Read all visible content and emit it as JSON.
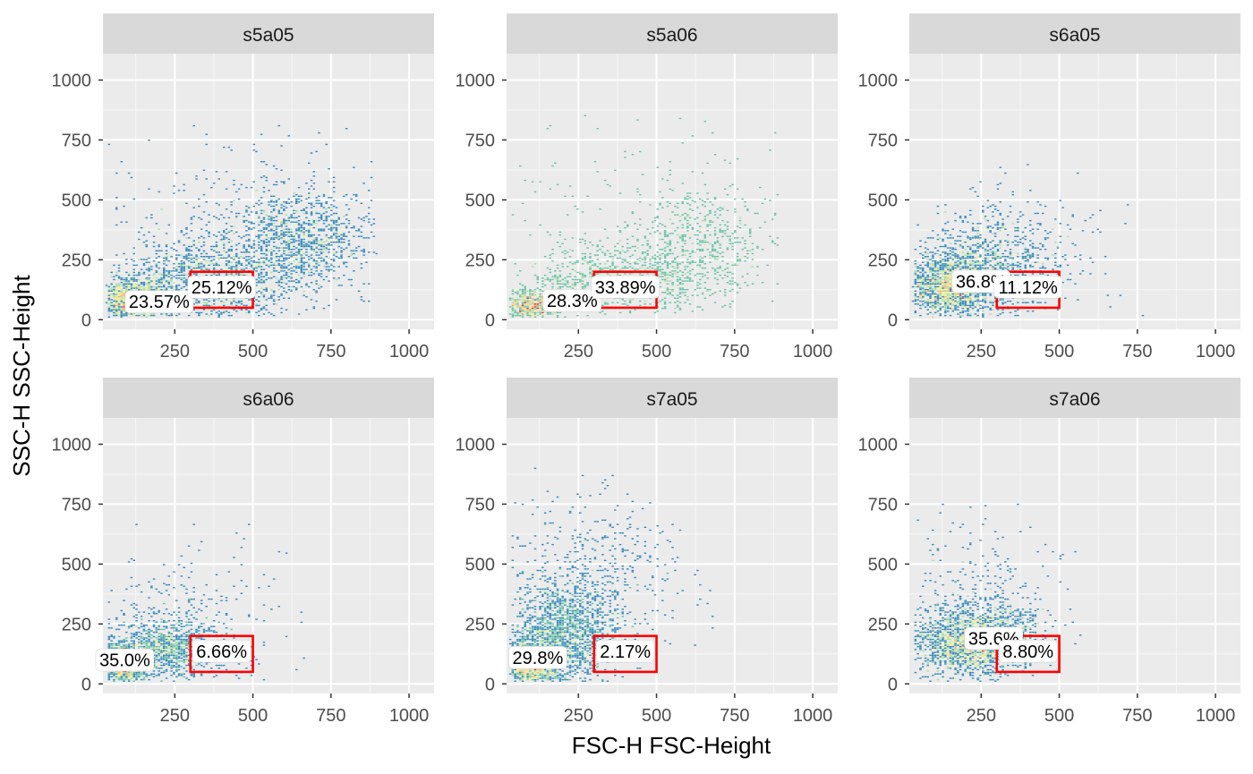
{
  "chart_data": {
    "type": "scatter",
    "title": "",
    "xlabel": "FSC-H FSC-Height",
    "ylabel": "SSC-H SSC-Height",
    "xlim": [
      20,
      1080
    ],
    "ylim": [
      -40,
      1110
    ],
    "xticks": [
      250,
      500,
      750,
      1000
    ],
    "xtick_labels": [
      "250",
      "500",
      "750",
      "1000"
    ],
    "yticks": [
      0,
      250,
      500,
      750,
      1000
    ],
    "ytick_labels": [
      "0",
      "250",
      "500",
      "750",
      "1000"
    ],
    "grid": true,
    "facet_layout": "2x3",
    "gate_color": "#ff0000",
    "density_colors": [
      "#5e4fa2",
      "#3288bd",
      "#66c2a5",
      "#abdda4",
      "#e6f598",
      "#fee08b",
      "#fdae61",
      "#d53e4f"
    ],
    "panels": [
      {
        "name": "s5a05",
        "ellipse": {
          "cx": 200,
          "cy": 75,
          "rx": 95,
          "ry": 22
        },
        "ellipse_label": "23.57%",
        "rect": {
          "x0": 300,
          "x1": 500,
          "y0": 50,
          "y1": 200
        },
        "rect_label": "25.12%",
        "clusters": [
          {
            "cx": 120,
            "cy": 80,
            "sx": 60,
            "sy": 45,
            "n": 1400
          },
          {
            "cx": 350,
            "cy": 160,
            "sx": 130,
            "sy": 90,
            "n": 1300
          },
          {
            "cx": 650,
            "cy": 330,
            "sx": 110,
            "sy": 110,
            "n": 1000
          },
          {
            "cx": 500,
            "cy": 380,
            "sx": 220,
            "sy": 200,
            "n": 350
          }
        ]
      },
      {
        "name": "s5a06",
        "ellipse": {
          "cx": 230,
          "cy": 80,
          "rx": 80,
          "ry": 18
        },
        "ellipse_label": "28.3%",
        "rect": {
          "x0": 300,
          "x1": 500,
          "y0": 50,
          "y1": 200
        },
        "rect_label": "33.89%",
        "clusters": [
          {
            "cx": 100,
            "cy": 60,
            "sx": 50,
            "sy": 35,
            "n": 700
          },
          {
            "cx": 400,
            "cy": 170,
            "sx": 160,
            "sy": 80,
            "n": 900
          },
          {
            "cx": 650,
            "cy": 320,
            "sx": 120,
            "sy": 110,
            "n": 450
          },
          {
            "cx": 450,
            "cy": 420,
            "sx": 250,
            "sy": 220,
            "n": 150
          }
        ]
      },
      {
        "name": "s6a05",
        "ellipse": {
          "cx": 250,
          "cy": 160,
          "rx": 40,
          "ry": 32
        },
        "ellipse_label": "36.8%",
        "rect": {
          "x0": 300,
          "x1": 500,
          "y0": 50,
          "y1": 200
        },
        "rect_label": "11.12%",
        "clusters": [
          {
            "cx": 150,
            "cy": 140,
            "sx": 70,
            "sy": 60,
            "n": 1500
          },
          {
            "cx": 250,
            "cy": 200,
            "sx": 110,
            "sy": 100,
            "n": 900
          },
          {
            "cx": 350,
            "cy": 280,
            "sx": 150,
            "sy": 150,
            "n": 300
          }
        ]
      },
      {
        "name": "s6a06",
        "ellipse": {
          "cx": 90,
          "cy": 100,
          "rx": 22,
          "ry": 45
        },
        "ellipse_label": "35.0%",
        "rect": {
          "x0": 300,
          "x1": 500,
          "y0": 50,
          "y1": 200
        },
        "rect_label": "6.66%",
        "clusters": [
          {
            "cx": 90,
            "cy": 80,
            "sx": 40,
            "sy": 45,
            "n": 1200
          },
          {
            "cx": 230,
            "cy": 150,
            "sx": 80,
            "sy": 60,
            "n": 1000
          },
          {
            "cx": 300,
            "cy": 280,
            "sx": 140,
            "sy": 150,
            "n": 250
          }
        ]
      },
      {
        "name": "s7a05",
        "ellipse": {
          "cx": 120,
          "cy": 110,
          "rx": 40,
          "ry": 40
        },
        "ellipse_label": "29.8%",
        "rect": {
          "x0": 300,
          "x1": 500,
          "y0": 50,
          "y1": 200
        },
        "rect_label": "2.17%",
        "clusters": [
          {
            "cx": 90,
            "cy": 80,
            "sx": 40,
            "sy": 50,
            "n": 1400
          },
          {
            "cx": 200,
            "cy": 200,
            "sx": 80,
            "sy": 110,
            "n": 1600
          },
          {
            "cx": 300,
            "cy": 430,
            "sx": 150,
            "sy": 180,
            "n": 500
          }
        ]
      },
      {
        "name": "s7a06",
        "ellipse": {
          "cx": 290,
          "cy": 190,
          "rx": 40,
          "ry": 30
        },
        "ellipse_label": "35.6%",
        "rect": {
          "x0": 300,
          "x1": 500,
          "y0": 50,
          "y1": 200
        },
        "rect_label": "8.80%",
        "clusters": [
          {
            "cx": 200,
            "cy": 160,
            "sx": 90,
            "sy": 70,
            "n": 1400
          },
          {
            "cx": 300,
            "cy": 200,
            "sx": 80,
            "sy": 60,
            "n": 700
          },
          {
            "cx": 250,
            "cy": 330,
            "sx": 110,
            "sy": 170,
            "n": 350
          }
        ]
      }
    ]
  }
}
